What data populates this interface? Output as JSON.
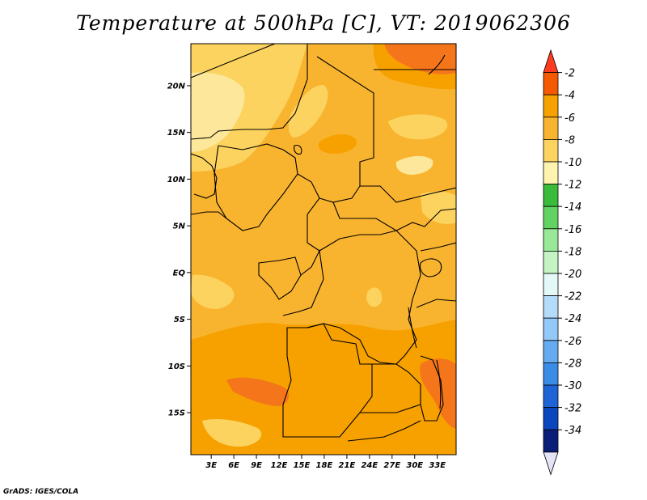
{
  "title": "Temperature at 500hPa [C], VT: 2019062306",
  "footer": "GrADS: IGES/COLA",
  "chart_data": {
    "type": "map",
    "variable": "Temperature at 500hPa",
    "units": "C",
    "valid_time": "2019062306",
    "lat_ticks": [
      "20N",
      "15N",
      "10N",
      "5N",
      "EQ",
      "5S",
      "10S",
      "15S"
    ],
    "lat_values": [
      20,
      15,
      10,
      5,
      0,
      -5,
      -10,
      -15
    ],
    "lon_ticks": [
      "3E",
      "6E",
      "9E",
      "12E",
      "15E",
      "18E",
      "21E",
      "24E",
      "27E",
      "30E",
      "33E"
    ],
    "lon_values": [
      3,
      6,
      9,
      12,
      15,
      18,
      21,
      24,
      27,
      30,
      33
    ],
    "lat_range": [
      -19.5,
      24.5
    ],
    "lon_range": [
      0.3,
      35.5
    ],
    "colorbar": {
      "labels": [
        "-2",
        "-4",
        "-6",
        "-8",
        "-10",
        "-12",
        "-14",
        "-16",
        "-18",
        "-20",
        "-22",
        "-24",
        "-26",
        "-28",
        "-30",
        "-32",
        "-34"
      ],
      "colors": [
        "#ff3b1f",
        "#f55a00",
        "#f7a100",
        "#f9b42f",
        "#fbd35e",
        "#fef4b0",
        "#3bbb3b",
        "#62d362",
        "#98e898",
        "#c4f4c4",
        "#e4f8f8",
        "#b4dcf8",
        "#94c8f8",
        "#66aaf0",
        "#3b8ce6",
        "#1e64d6",
        "#0a46be",
        "#0a1e78",
        "#e4e4f8"
      ]
    }
  }
}
